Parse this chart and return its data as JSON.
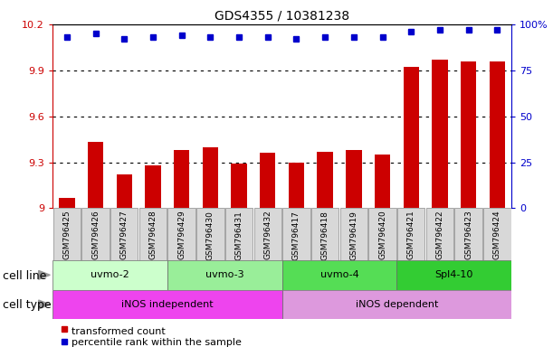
{
  "title": "GDS4355 / 10381238",
  "samples": [
    "GSM796425",
    "GSM796426",
    "GSM796427",
    "GSM796428",
    "GSM796429",
    "GSM796430",
    "GSM796431",
    "GSM796432",
    "GSM796417",
    "GSM796418",
    "GSM796419",
    "GSM796420",
    "GSM796421",
    "GSM796422",
    "GSM796423",
    "GSM796424"
  ],
  "bar_values": [
    9.07,
    9.43,
    9.22,
    9.28,
    9.38,
    9.4,
    9.29,
    9.36,
    9.3,
    9.37,
    9.38,
    9.35,
    9.92,
    9.97,
    9.96,
    9.96
  ],
  "dot_values": [
    93,
    95,
    92,
    93,
    94,
    93,
    93,
    93,
    92,
    93,
    93,
    93,
    96,
    97,
    97,
    97
  ],
  "ylim_left": [
    9.0,
    10.2
  ],
  "ylim_right": [
    0,
    100
  ],
  "yticks_left": [
    9.0,
    9.3,
    9.6,
    9.9,
    10.2
  ],
  "yticks_right": [
    0,
    25,
    50,
    75,
    100
  ],
  "ytick_labels_left": [
    "9",
    "9.3",
    "9.6",
    "9.9",
    "10.2"
  ],
  "ytick_labels_right": [
    "0",
    "25",
    "50",
    "75",
    "100%"
  ],
  "grid_lines": [
    9.3,
    9.6,
    9.9
  ],
  "bar_color": "#cc0000",
  "dot_color": "#0000cc",
  "cell_lines": [
    {
      "label": "uvmo-2",
      "start": 0,
      "end": 4,
      "color": "#ccffcc"
    },
    {
      "label": "uvmo-3",
      "start": 4,
      "end": 8,
      "color": "#99ee99"
    },
    {
      "label": "uvmo-4",
      "start": 8,
      "end": 12,
      "color": "#55dd55"
    },
    {
      "label": "Spl4-10",
      "start": 12,
      "end": 16,
      "color": "#33cc33"
    }
  ],
  "cell_types": [
    {
      "label": "iNOS independent",
      "start": 0,
      "end": 8,
      "color": "#ee44ee"
    },
    {
      "label": "iNOS dependent",
      "start": 8,
      "end": 16,
      "color": "#dd99dd"
    }
  ],
  "legend_bar_label": "transformed count",
  "legend_dot_label": "percentile rank within the sample",
  "cell_line_label": "cell line",
  "cell_type_label": "cell type",
  "bg_color": "#ffffff",
  "sample_box_color": "#d8d8d8",
  "bar_width": 0.55,
  "dot_size": 5,
  "title_fontsize": 10,
  "tick_fontsize": 8,
  "label_fontsize": 9,
  "legend_fontsize": 8
}
